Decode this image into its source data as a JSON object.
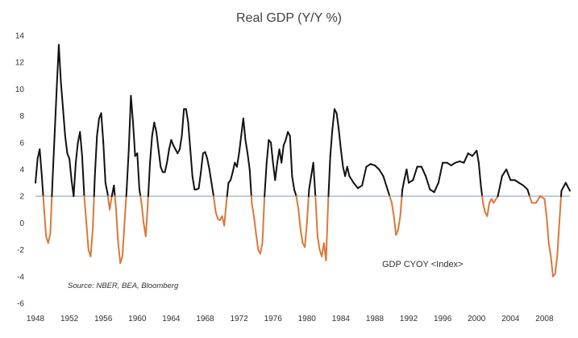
{
  "chart_data": {
    "type": "line",
    "title": "Real GDP (Y/Y %)",
    "source_note": "Source: NBER, BEA, Bloomberg",
    "series_label": "GDP CYOY <Index>",
    "xlim": [
      1948,
      2011
    ],
    "ylim": [
      -6,
      14
    ],
    "x_ticks": [
      "1948",
      "1952",
      "1956",
      "1960",
      "1964",
      "1968",
      "1972",
      "1976",
      "1980",
      "1984",
      "1988",
      "1992",
      "1996",
      "2000",
      "2004",
      "2008"
    ],
    "y_ticks": [
      "-6",
      "-4",
      "-2",
      "0",
      "2",
      "4",
      "6",
      "8",
      "10",
      "12",
      "14"
    ],
    "reference_line": 2.0,
    "colors": {
      "above": "#111111",
      "below": "#d9793a",
      "reference": "#9db8d6"
    },
    "series": [
      {
        "x": [
          1948,
          1948.25,
          1948.5,
          1948.75,
          1949,
          1949.25,
          1949.5,
          1949.75,
          1950,
          1950.25,
          1950.5,
          1950.75,
          1951,
          1951.25,
          1951.5,
          1951.75,
          1952,
          1952.25,
          1952.5,
          1952.75,
          1953,
          1953.25,
          1953.5,
          1953.75,
          1954,
          1954.25,
          1954.5,
          1954.75,
          1955,
          1955.25,
          1955.5,
          1955.75,
          1956,
          1956.25,
          1956.5,
          1956.75,
          1957,
          1957.25,
          1957.5,
          1957.75,
          1958,
          1958.25,
          1958.5,
          1958.75,
          1959,
          1959.25,
          1959.5,
          1959.75,
          1960,
          1960.25,
          1960.5,
          1960.75,
          1961,
          1961.25,
          1961.5,
          1961.75,
          1962,
          1962.25,
          1962.5,
          1962.75,
          1963,
          1963.25,
          1963.5,
          1963.75,
          1964,
          1964.25,
          1964.5,
          1964.75,
          1965,
          1965.25,
          1965.5,
          1965.75,
          1966,
          1966.25,
          1966.5,
          1966.75,
          1967,
          1967.25,
          1967.5,
          1967.75,
          1968,
          1968.25,
          1968.5,
          1968.75,
          1969,
          1969.25,
          1969.5,
          1969.75,
          1970,
          1970.25,
          1970.5,
          1970.75,
          1971,
          1971.25,
          1971.5,
          1971.75,
          1972,
          1972.25,
          1972.5,
          1972.75,
          1973,
          1973.25,
          1973.5,
          1973.75,
          1974,
          1974.25,
          1974.5,
          1974.75,
          1975,
          1975.25,
          1975.5,
          1975.75,
          1976,
          1976.25,
          1976.5,
          1976.75,
          1977,
          1977.25,
          1977.5,
          1977.75,
          1978,
          1978.25,
          1978.5,
          1978.75,
          1979,
          1979.25,
          1979.5,
          1979.75,
          1980,
          1980.25,
          1980.5,
          1980.75,
          1981,
          1981.25,
          1981.5,
          1981.75,
          1982,
          1982.25,
          1982.5,
          1982.75,
          1983,
          1983.25,
          1983.5,
          1983.75,
          1984,
          1984.25,
          1984.5,
          1984.75,
          1985,
          1985.5,
          1986,
          1986.5,
          1987,
          1987.5,
          1988,
          1988.5,
          1989,
          1989.5,
          1990,
          1990.25,
          1990.5,
          1990.75,
          1991,
          1991.25,
          1991.5,
          1991.75,
          1992,
          1992.5,
          1993,
          1993.5,
          1994,
          1994.5,
          1995,
          1995.5,
          1996,
          1996.5,
          1997,
          1997.5,
          1998,
          1998.5,
          1999,
          1999.5,
          2000,
          2000.25,
          2000.5,
          2000.75,
          2001,
          2001.25,
          2001.5,
          2001.75,
          2002,
          2002.5,
          2003,
          2003.5,
          2004,
          2004.5,
          2005,
          2005.5,
          2006,
          2006.5,
          2007,
          2007.5,
          2008,
          2008.25,
          2008.5,
          2008.75,
          2009,
          2009.25,
          2009.5,
          2009.75,
          2010,
          2010.5,
          2011
        ],
        "values": [
          3.0,
          4.8,
          5.5,
          3.5,
          1.2,
          -1.0,
          -1.5,
          -0.8,
          3.0,
          6.5,
          10.0,
          13.3,
          10.5,
          8.5,
          6.5,
          5.2,
          4.8,
          3.2,
          2.0,
          4.5,
          6.0,
          6.8,
          5.0,
          2.0,
          0.0,
          -2.0,
          -2.5,
          -0.5,
          3.5,
          6.5,
          7.8,
          8.2,
          6.0,
          3.0,
          2.2,
          1.0,
          2.0,
          2.8,
          1.0,
          -1.5,
          -3.0,
          -2.5,
          0.0,
          2.5,
          5.5,
          9.5,
          7.5,
          5.0,
          5.2,
          2.5,
          1.5,
          0.0,
          -1.0,
          1.5,
          4.5,
          6.5,
          7.5,
          6.8,
          5.5,
          4.2,
          3.8,
          3.8,
          4.5,
          5.5,
          6.2,
          5.8,
          5.5,
          5.2,
          5.5,
          6.5,
          8.5,
          8.5,
          7.5,
          5.5,
          3.5,
          2.5,
          2.5,
          2.6,
          3.8,
          5.2,
          5.3,
          4.8,
          4.0,
          3.0,
          2.0,
          0.8,
          0.3,
          0.2,
          0.5,
          -0.2,
          1.5,
          3.0,
          3.2,
          3.8,
          4.5,
          4.2,
          5.2,
          6.5,
          7.8,
          6.2,
          5.2,
          4.0,
          1.5,
          0.5,
          -0.8,
          -2.0,
          -2.3,
          -1.5,
          2.0,
          4.5,
          6.2,
          6.0,
          4.5,
          3.2,
          4.5,
          5.5,
          4.5,
          5.8,
          6.2,
          6.8,
          6.5,
          3.5,
          2.5,
          2.0,
          1.0,
          -0.5,
          -1.5,
          -1.8,
          0.0,
          2.5,
          3.5,
          4.5,
          2.0,
          -1.0,
          -2.0,
          -2.5,
          -1.5,
          -2.8,
          1.5,
          5.0,
          7.0,
          8.5,
          8.2,
          7.0,
          5.5,
          4.2,
          3.5,
          4.2,
          3.5,
          3.0,
          2.6,
          2.8,
          4.2,
          4.4,
          4.3,
          4.0,
          3.5,
          2.5,
          1.5,
          0.5,
          -0.9,
          -0.5,
          0.5,
          2.5,
          3.3,
          4.0,
          3.0,
          3.2,
          4.2,
          4.2,
          3.5,
          2.5,
          2.3,
          3.0,
          4.5,
          4.5,
          4.3,
          4.5,
          4.6,
          4.5,
          5.2,
          5.0,
          5.4,
          4.5,
          2.8,
          1.5,
          0.8,
          0.5,
          1.5,
          1.8,
          1.5,
          2.0,
          3.5,
          4.0,
          3.2,
          3.2,
          3.0,
          2.8,
          2.5,
          1.5,
          1.5,
          2.0,
          1.8,
          0.5,
          -1.5,
          -2.5,
          -4.0,
          -3.8,
          -2.5,
          0.0,
          2.4,
          3.0,
          2.4
        ]
      }
    ]
  }
}
